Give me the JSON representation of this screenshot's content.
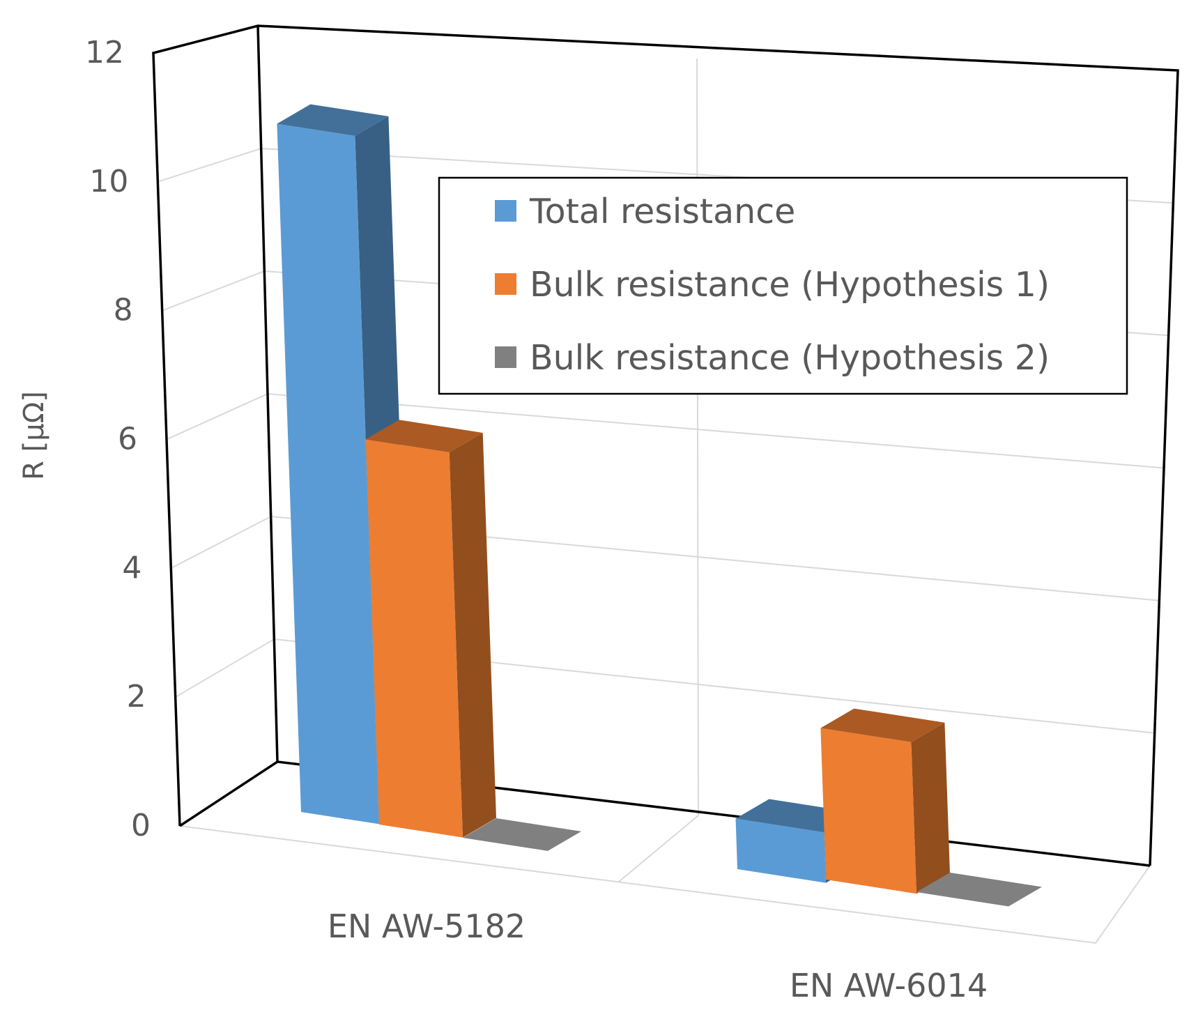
{
  "chart_data": {
    "type": "bar",
    "title": "",
    "xlabel": "",
    "ylabel": "R [µΩ]",
    "categories": [
      "EN AW-5182",
      "EN AW-6014"
    ],
    "series": [
      {
        "name": "Total resistance",
        "values": [
          10.9,
          0.8
        ],
        "color": "#5b9bd5"
      },
      {
        "name": "Bulk resistance (Hypothesis 1)",
        "values": [
          6.1,
          2.4
        ],
        "color": "#ed7d31"
      },
      {
        "name": "Bulk resistance (Hypothesis 2)",
        "values": [
          0.0,
          0.0
        ],
        "color": "#808080"
      }
    ],
    "ylim": [
      0,
      12
    ],
    "yticks": [
      0,
      2,
      4,
      6,
      8,
      10,
      12
    ],
    "grid": true,
    "legend_position": "top-right, inside plot",
    "projection": "3d-perspective"
  }
}
